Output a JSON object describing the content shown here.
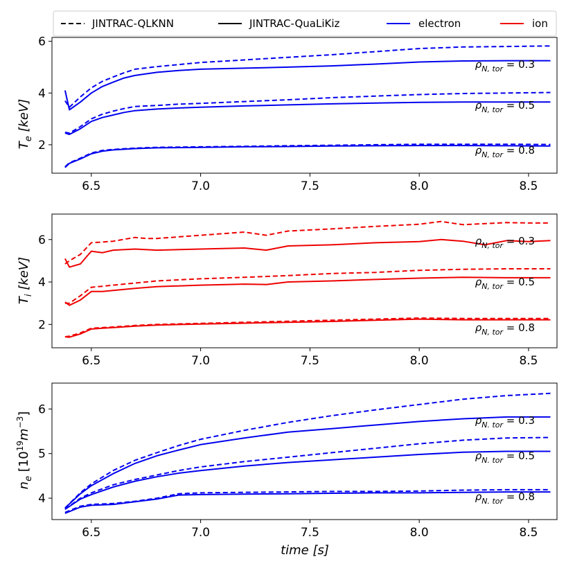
{
  "legend": [
    {
      "label": "JINTRAC-QLKNN",
      "style": "dashed",
      "color": "#000000"
    },
    {
      "label": "JINTRAC-QuaLiKiz",
      "style": "solid",
      "color": "#000000"
    },
    {
      "label": "electron",
      "style": "solid",
      "color": "#0000ee"
    },
    {
      "label": "ion",
      "style": "solid",
      "color": "#ee0000"
    }
  ],
  "chart_data": [
    {
      "type": "line",
      "ylabel": "T_e [keV]",
      "ylabel_base": "T",
      "ylabel_sub": "e",
      "ylabel_unit": " [keV]",
      "color": "#0000ee",
      "xlim": [
        6.32,
        8.63
      ],
      "ylim": [
        0.9,
        6.15
      ],
      "xticks": [
        "6.5",
        "7.0",
        "7.5",
        "8.0",
        "8.5"
      ],
      "yticks": [
        "2",
        "4",
        "6"
      ],
      "annotations": [
        "ρN, tor = 0.3",
        "ρN, tor = 0.5",
        "ρN, tor = 0.8"
      ],
      "series": [
        {
          "model": "JINTRAC-QLKNN",
          "rho": "0.3",
          "x": [
            6.38,
            6.4,
            6.45,
            6.5,
            6.55,
            6.6,
            6.65,
            6.7,
            6.8,
            6.9,
            7.0,
            7.2,
            7.4,
            7.6,
            7.8,
            8.0,
            8.2,
            8.4,
            8.6
          ],
          "y": [
            3.7,
            3.45,
            3.85,
            4.2,
            4.45,
            4.62,
            4.78,
            4.92,
            5.02,
            5.1,
            5.18,
            5.28,
            5.38,
            5.48,
            5.6,
            5.72,
            5.78,
            5.8,
            5.82
          ]
        },
        {
          "model": "JINTRAC-QuaLiKiz",
          "rho": "0.3",
          "x": [
            6.38,
            6.4,
            6.45,
            6.5,
            6.55,
            6.6,
            6.65,
            6.7,
            6.8,
            6.9,
            7.0,
            7.2,
            7.4,
            7.6,
            7.8,
            8.0,
            8.2,
            8.4,
            8.6
          ],
          "y": [
            4.1,
            3.35,
            3.65,
            4.0,
            4.25,
            4.42,
            4.58,
            4.68,
            4.8,
            4.87,
            4.92,
            4.96,
            5.0,
            5.05,
            5.12,
            5.2,
            5.24,
            5.25,
            5.25
          ]
        },
        {
          "model": "JINTRAC-QLKNN",
          "rho": "0.5",
          "x": [
            6.38,
            6.4,
            6.45,
            6.5,
            6.55,
            6.6,
            6.65,
            6.7,
            6.8,
            6.9,
            7.0,
            7.2,
            7.4,
            7.6,
            7.8,
            8.0,
            8.2,
            8.4,
            8.6
          ],
          "y": [
            2.48,
            2.45,
            2.7,
            3.0,
            3.18,
            3.3,
            3.4,
            3.48,
            3.52,
            3.57,
            3.6,
            3.67,
            3.74,
            3.82,
            3.88,
            3.94,
            3.98,
            4.0,
            4.02
          ]
        },
        {
          "model": "JINTRAC-QuaLiKiz",
          "rho": "0.5",
          "x": [
            6.38,
            6.4,
            6.45,
            6.5,
            6.55,
            6.6,
            6.65,
            6.7,
            6.8,
            6.9,
            7.0,
            7.2,
            7.4,
            7.6,
            7.8,
            8.0,
            8.2,
            8.4,
            8.6
          ],
          "y": [
            2.45,
            2.4,
            2.62,
            2.9,
            3.05,
            3.15,
            3.25,
            3.32,
            3.38,
            3.42,
            3.45,
            3.5,
            3.54,
            3.58,
            3.61,
            3.64,
            3.65,
            3.65,
            3.65
          ]
        },
        {
          "model": "JINTRAC-QLKNN",
          "rho": "0.8",
          "x": [
            6.38,
            6.4,
            6.45,
            6.5,
            6.55,
            6.6,
            6.7,
            6.8,
            7.0,
            7.2,
            7.4,
            7.6,
            7.8,
            8.0,
            8.2,
            8.4,
            8.6
          ],
          "y": [
            1.15,
            1.3,
            1.48,
            1.68,
            1.78,
            1.82,
            1.87,
            1.9,
            1.92,
            1.94,
            1.96,
            1.98,
            2.0,
            2.02,
            2.02,
            2.02,
            2.01
          ]
        },
        {
          "model": "JINTRAC-QuaLiKiz",
          "rho": "0.8",
          "x": [
            6.38,
            6.4,
            6.45,
            6.5,
            6.55,
            6.6,
            6.7,
            6.8,
            7.0,
            7.2,
            7.4,
            7.6,
            7.8,
            8.0,
            8.2,
            8.4,
            8.6
          ],
          "y": [
            1.12,
            1.28,
            1.45,
            1.65,
            1.75,
            1.8,
            1.85,
            1.88,
            1.9,
            1.92,
            1.93,
            1.95,
            1.96,
            1.97,
            1.97,
            1.96,
            1.95
          ]
        }
      ]
    },
    {
      "type": "line",
      "ylabel": "T_i [keV]",
      "ylabel_base": "T",
      "ylabel_sub": "i",
      "ylabel_unit": " [keV]",
      "color": "#ee0000",
      "xlim": [
        6.32,
        8.63
      ],
      "ylim": [
        0.9,
        7.2
      ],
      "xticks": [
        "6.5",
        "7.0",
        "7.5",
        "8.0",
        "8.5"
      ],
      "yticks": [
        "2",
        "4",
        "6"
      ],
      "annotations": [
        "ρN, tor = 0.3",
        "ρN, tor = 0.5",
        "ρN, tor = 0.8"
      ],
      "series": [
        {
          "model": "JINTRAC-QLKNN",
          "rho": "0.3",
          "x": [
            6.38,
            6.4,
            6.45,
            6.5,
            6.55,
            6.6,
            6.7,
            6.75,
            6.8,
            7.0,
            7.2,
            7.3,
            7.4,
            7.6,
            7.8,
            8.0,
            8.1,
            8.2,
            8.4,
            8.5,
            8.6
          ],
          "y": [
            4.85,
            5.0,
            5.3,
            5.85,
            5.88,
            5.92,
            6.1,
            6.05,
            6.05,
            6.2,
            6.35,
            6.2,
            6.4,
            6.5,
            6.62,
            6.72,
            6.85,
            6.7,
            6.8,
            6.78,
            6.78
          ]
        },
        {
          "model": "JINTRAC-QuaLiKiz",
          "rho": "0.3",
          "x": [
            6.38,
            6.4,
            6.45,
            6.5,
            6.55,
            6.6,
            6.7,
            6.8,
            7.0,
            7.2,
            7.3,
            7.4,
            7.6,
            7.8,
            8.0,
            8.1,
            8.2,
            8.3,
            8.4,
            8.5,
            8.6
          ],
          "y": [
            5.1,
            4.7,
            4.85,
            5.45,
            5.38,
            5.5,
            5.55,
            5.5,
            5.55,
            5.6,
            5.5,
            5.7,
            5.75,
            5.85,
            5.9,
            6.0,
            5.92,
            5.75,
            5.95,
            5.9,
            5.95
          ]
        },
        {
          "model": "JINTRAC-QLKNN",
          "rho": "0.5",
          "x": [
            6.38,
            6.4,
            6.45,
            6.5,
            6.55,
            6.6,
            6.7,
            6.8,
            7.0,
            7.2,
            7.4,
            7.6,
            7.8,
            8.0,
            8.2,
            8.4,
            8.6
          ],
          "y": [
            3.0,
            3.0,
            3.35,
            3.75,
            3.8,
            3.85,
            3.95,
            4.05,
            4.15,
            4.22,
            4.3,
            4.4,
            4.45,
            4.55,
            4.6,
            4.62,
            4.62
          ]
        },
        {
          "model": "JINTRAC-QuaLiKiz",
          "rho": "0.5",
          "x": [
            6.38,
            6.4,
            6.45,
            6.5,
            6.55,
            6.6,
            6.7,
            6.8,
            7.0,
            7.2,
            7.3,
            7.4,
            7.6,
            7.8,
            8.0,
            8.2,
            8.4,
            8.6
          ],
          "y": [
            3.05,
            2.9,
            3.15,
            3.55,
            3.55,
            3.6,
            3.7,
            3.78,
            3.85,
            3.9,
            3.88,
            4.0,
            4.05,
            4.12,
            4.18,
            4.22,
            4.2,
            4.2
          ]
        },
        {
          "model": "JINTRAC-QLKNN",
          "rho": "0.8",
          "x": [
            6.38,
            6.4,
            6.45,
            6.5,
            6.55,
            6.6,
            6.7,
            6.8,
            7.0,
            7.2,
            7.4,
            7.6,
            7.8,
            8.0,
            8.2,
            8.4,
            8.6
          ],
          "y": [
            1.42,
            1.45,
            1.6,
            1.82,
            1.85,
            1.88,
            1.95,
            2.0,
            2.05,
            2.1,
            2.15,
            2.2,
            2.25,
            2.3,
            2.28,
            2.28,
            2.28
          ]
        },
        {
          "model": "JINTRAC-QuaLiKiz",
          "rho": "0.8",
          "x": [
            6.38,
            6.4,
            6.45,
            6.5,
            6.55,
            6.6,
            6.7,
            6.8,
            7.0,
            7.2,
            7.4,
            7.6,
            7.8,
            8.0,
            8.2,
            8.4,
            8.6
          ],
          "y": [
            1.42,
            1.4,
            1.55,
            1.78,
            1.82,
            1.85,
            1.92,
            1.97,
            2.02,
            2.06,
            2.1,
            2.14,
            2.2,
            2.25,
            2.22,
            2.22,
            2.22
          ]
        }
      ]
    },
    {
      "type": "line",
      "ylabel": "n_e [10^19 m^-3]",
      "ylabel_base": "n",
      "ylabel_sub": "e",
      "ylabel_unit": " [10",
      "ylabel_exp": "19",
      "ylabel_unit2": "m",
      "ylabel_exp2": "−3",
      "ylabel_end": "]",
      "color": "#0000ee",
      "xlabel": "time [s]",
      "xlim": [
        6.32,
        8.63
      ],
      "ylim": [
        3.52,
        6.58
      ],
      "xticks": [
        "6.5",
        "7.0",
        "7.5",
        "8.0",
        "8.5"
      ],
      "yticks": [
        "4",
        "5",
        "6"
      ],
      "annotations": [
        "ρN. tor = 0.3",
        "ρN. tor = 0.5",
        "ρN. tor = 0.8"
      ],
      "series": [
        {
          "model": "JINTRAC-QLKNN",
          "rho": "0.3",
          "x": [
            6.38,
            6.45,
            6.5,
            6.6,
            6.7,
            6.8,
            6.9,
            7.0,
            7.2,
            7.4,
            7.6,
            7.8,
            8.0,
            8.2,
            8.4,
            8.6
          ],
          "y": [
            3.78,
            4.12,
            4.32,
            4.62,
            4.85,
            5.02,
            5.18,
            5.32,
            5.52,
            5.7,
            5.85,
            5.98,
            6.1,
            6.22,
            6.3,
            6.35
          ]
        },
        {
          "model": "JINTRAC-QuaLiKiz",
          "rho": "0.3",
          "x": [
            6.38,
            6.45,
            6.5,
            6.6,
            6.7,
            6.8,
            6.9,
            7.0,
            7.2,
            7.4,
            7.6,
            7.8,
            8.0,
            8.2,
            8.4,
            8.6
          ],
          "y": [
            3.78,
            4.1,
            4.28,
            4.55,
            4.78,
            4.95,
            5.08,
            5.2,
            5.35,
            5.48,
            5.56,
            5.64,
            5.72,
            5.78,
            5.82,
            5.82
          ]
        },
        {
          "model": "JINTRAC-QLKNN",
          "rho": "0.5",
          "x": [
            6.38,
            6.45,
            6.5,
            6.6,
            6.7,
            6.8,
            6.9,
            7.0,
            7.2,
            7.4,
            7.6,
            7.8,
            8.0,
            8.2,
            8.4,
            8.6
          ],
          "y": [
            3.75,
            4.0,
            4.12,
            4.3,
            4.42,
            4.52,
            4.62,
            4.7,
            4.82,
            4.92,
            5.02,
            5.12,
            5.22,
            5.3,
            5.35,
            5.36
          ]
        },
        {
          "model": "JINTRAC-QuaLiKiz",
          "rho": "0.5",
          "x": [
            6.38,
            6.45,
            6.5,
            6.6,
            6.7,
            6.8,
            6.9,
            7.0,
            7.2,
            7.4,
            7.6,
            7.8,
            8.0,
            8.2,
            8.4,
            8.6
          ],
          "y": [
            3.75,
            3.98,
            4.08,
            4.25,
            4.38,
            4.48,
            4.56,
            4.62,
            4.72,
            4.8,
            4.86,
            4.92,
            4.98,
            5.03,
            5.05,
            5.05
          ]
        },
        {
          "model": "JINTRAC-QLKNN",
          "rho": "0.8",
          "x": [
            6.38,
            6.45,
            6.5,
            6.6,
            6.7,
            6.8,
            6.9,
            7.0,
            7.2,
            7.4,
            7.6,
            7.8,
            8.0,
            8.2,
            8.4,
            8.6
          ],
          "y": [
            3.68,
            3.82,
            3.86,
            3.88,
            3.93,
            4.0,
            4.1,
            4.12,
            4.13,
            4.14,
            4.15,
            4.15,
            4.16,
            4.18,
            4.19,
            4.19
          ]
        },
        {
          "model": "JINTRAC-QuaLiKiz",
          "rho": "0.8",
          "x": [
            6.38,
            6.45,
            6.5,
            6.6,
            6.7,
            6.8,
            6.9,
            7.0,
            7.2,
            7.4,
            7.6,
            7.8,
            8.0,
            8.2,
            8.4,
            8.6
          ],
          "y": [
            3.66,
            3.8,
            3.84,
            3.86,
            3.92,
            3.98,
            4.07,
            4.08,
            4.09,
            4.1,
            4.11,
            4.12,
            4.12,
            4.13,
            4.14,
            4.14
          ]
        }
      ]
    }
  ]
}
